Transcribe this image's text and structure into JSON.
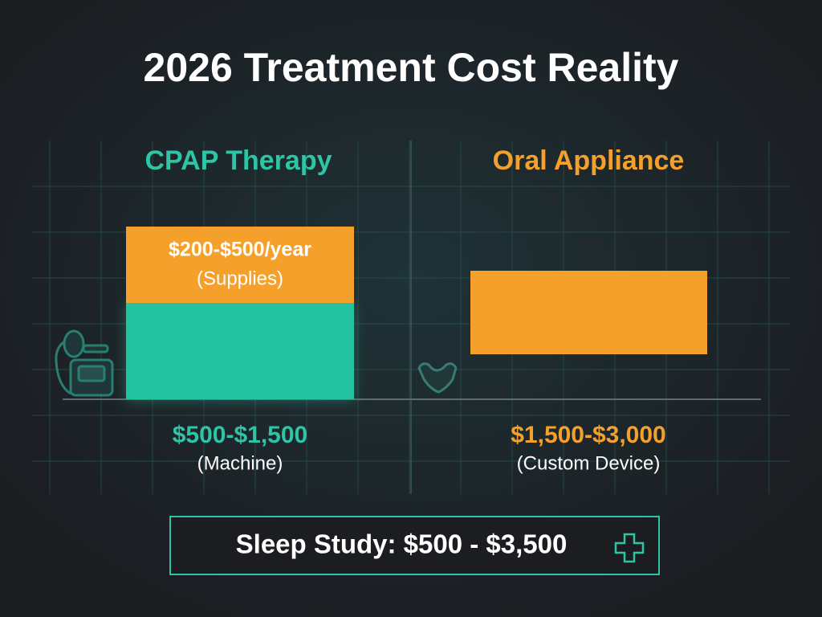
{
  "title": "2026 Treatment Cost Reality",
  "panels": [
    {
      "name": "CPAP Therapy",
      "supplies": {
        "label": "$200-$500/year",
        "note": "(Supplies)"
      },
      "cost": "$500-$1,500",
      "cost_note": "(Machine)"
    },
    {
      "name": "Oral Appliance",
      "cost": "$1,500-$3,000",
      "cost_note": "(Custom Device)"
    }
  ],
  "footer": "Sleep Study: $500 - $3,500"
}
